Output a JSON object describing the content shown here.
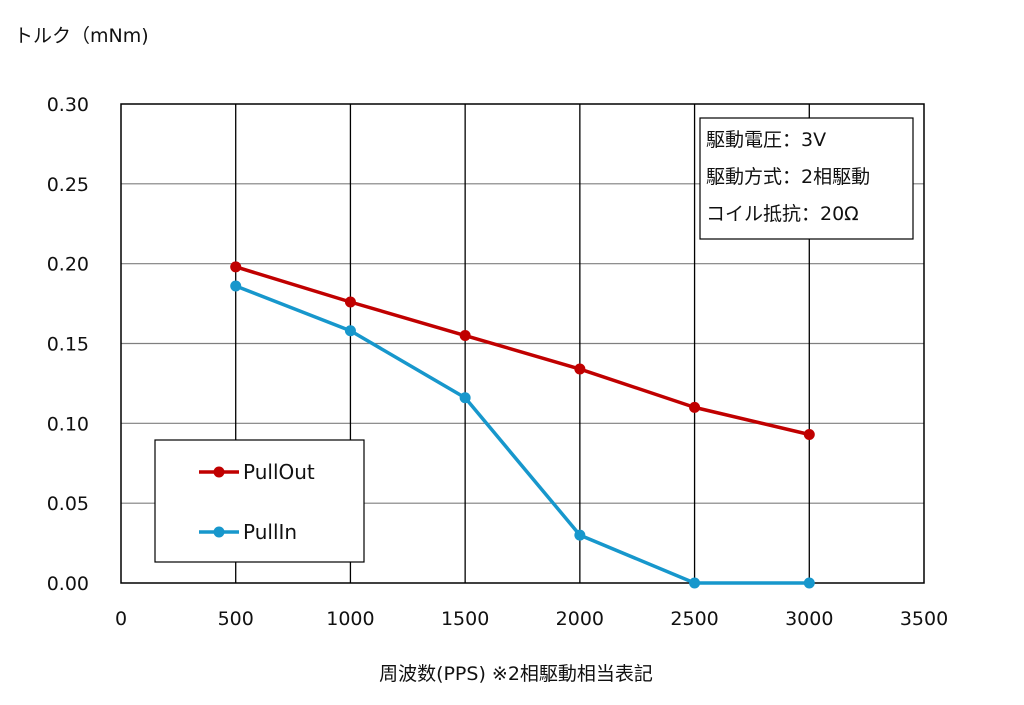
{
  "chart_data": {
    "type": "line",
    "ylabel": "トルク（mNm)",
    "xlabel": "周波数(PPS) ※2相駆動相当表記",
    "xlim": [
      0,
      3500
    ],
    "ylim": [
      0,
      0.3
    ],
    "x_ticks": [
      "0",
      "500",
      "1000",
      "1500",
      "2000",
      "2500",
      "3000",
      "3500"
    ],
    "y_ticks": [
      "0.00",
      "0.05",
      "0.10",
      "0.15",
      "0.20",
      "0.25",
      "0.30"
    ],
    "grid": true,
    "legend_position": "bottom-left",
    "series": [
      {
        "name": "PullOut",
        "color": "#c00000",
        "x": [
          500,
          1000,
          1500,
          2000,
          2500,
          3000
        ],
        "y": [
          0.198,
          0.176,
          0.155,
          0.134,
          0.11,
          0.093
        ]
      },
      {
        "name": "PullIn",
        "color": "#1797cc",
        "x": [
          500,
          1000,
          1500,
          2000,
          2500,
          3000
        ],
        "y": [
          0.186,
          0.158,
          0.116,
          0.03,
          0.0,
          0.0
        ]
      }
    ],
    "annotations": [
      "駆動電圧：3V",
      "駆動方式：2相駆動",
      "コイル抵抗：20Ω"
    ]
  }
}
